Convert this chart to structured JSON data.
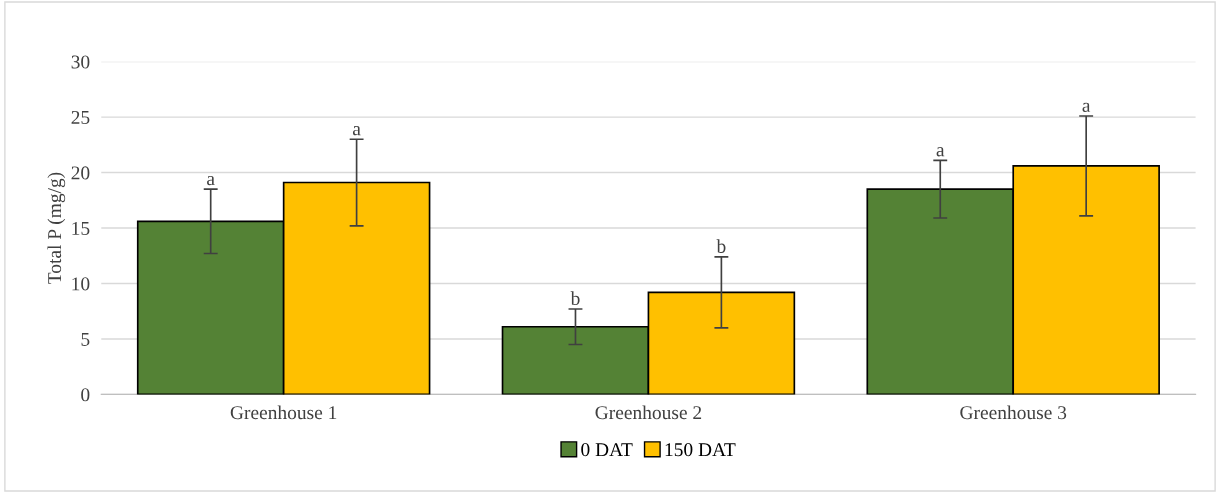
{
  "chart_data": {
    "type": "bar",
    "ylabel": "Total P (mg/g)",
    "categories": [
      "Greenhouse 1",
      "Greenhouse 2",
      "Greenhouse 3"
    ],
    "series": [
      {
        "name": "0 DAT",
        "color": "#548235",
        "values": [
          15.6,
          6.1,
          18.5
        ],
        "errors": [
          2.9,
          1.6,
          2.6
        ],
        "value_labels": [
          "a",
          "b",
          "a"
        ]
      },
      {
        "name": "150 DAT",
        "color": "#ffc000",
        "values": [
          19.1,
          9.2,
          20.6
        ],
        "errors": [
          3.9,
          3.2,
          4.5
        ],
        "value_labels": [
          "a",
          "b",
          "a"
        ]
      }
    ],
    "ylim": [
      0,
      30
    ],
    "yticks": [
      0,
      5,
      10,
      15,
      20,
      25,
      30
    ],
    "grid": "y",
    "legend": "bottom"
  }
}
